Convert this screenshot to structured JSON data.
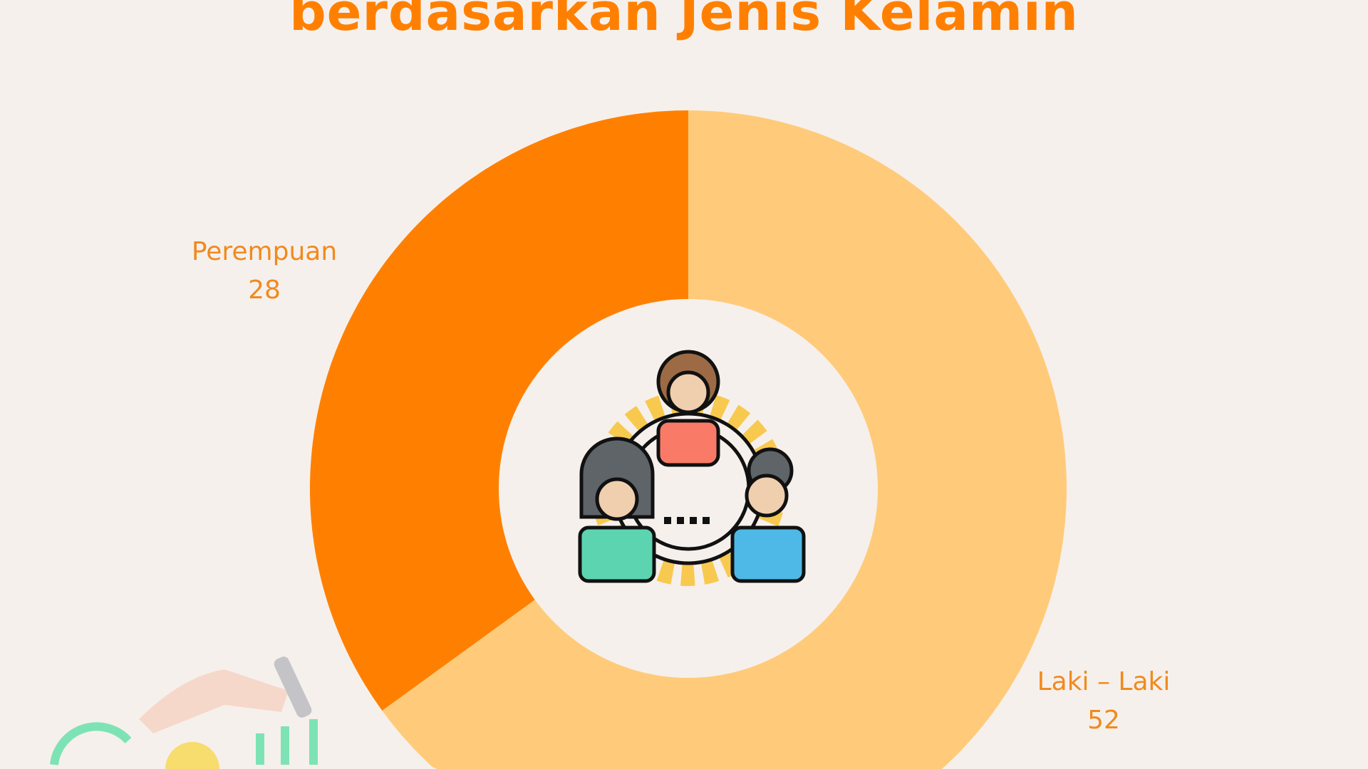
{
  "chart_data": {
    "type": "pie",
    "variant": "donut",
    "title": "berdasarkan Jenis Kelamin",
    "categories": [
      "Perempuan",
      "Laki – Laki"
    ],
    "values": [
      28,
      52
    ],
    "colors": [
      "#FF8000",
      "#FFCB7A"
    ],
    "start": "top",
    "direction": "Perempuan counter-clockwise from top",
    "center_icon": "team-gear-icon"
  },
  "colors": {
    "background": "#F6F0EC",
    "title": "#FF8000",
    "label": "#F08A1E"
  }
}
